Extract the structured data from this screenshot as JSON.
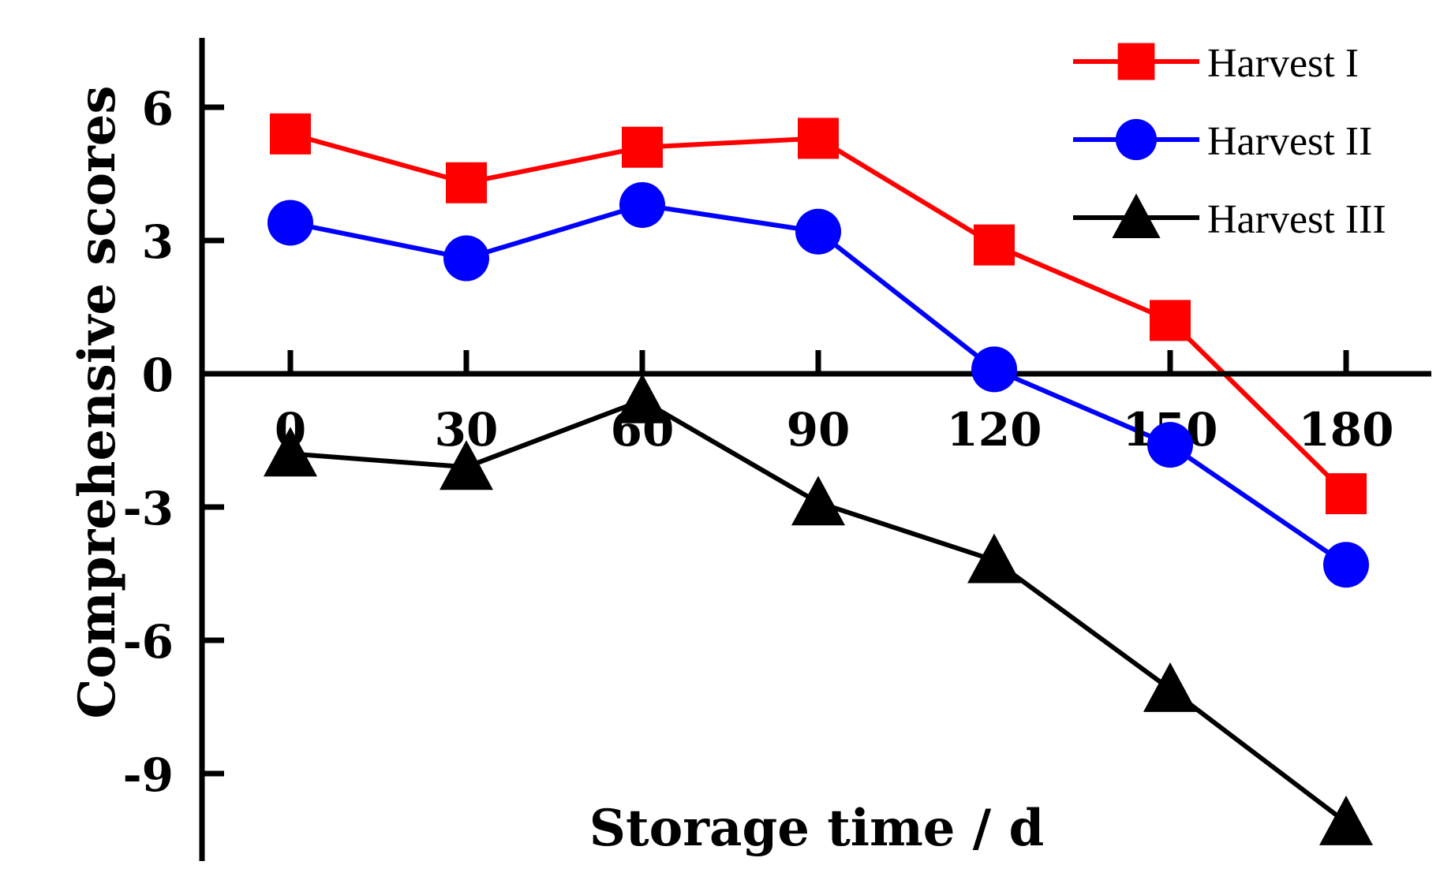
{
  "chart_data": {
    "type": "line",
    "title": "",
    "xlabel": "Storage time / d",
    "ylabel": "Comprehensive scores",
    "x": [
      0,
      30,
      60,
      90,
      120,
      150,
      180
    ],
    "x_tick_labels": [
      "0",
      "30",
      "60",
      "90",
      "120",
      "150",
      "180"
    ],
    "y_ticks": [
      6,
      3,
      0,
      -3,
      -6,
      -9
    ],
    "y_tick_labels": [
      "6",
      "3",
      "0",
      "-3",
      "-6",
      "-9"
    ],
    "xlim": [
      -15,
      195
    ],
    "ylim": [
      -11,
      7.5
    ],
    "grid": false,
    "legend_position": "top-right",
    "series": [
      {
        "name": "Harvest I",
        "marker": "square",
        "color": "#ff0000",
        "values": [
          5.4,
          4.3,
          5.1,
          5.3,
          2.9,
          1.2,
          -2.7
        ]
      },
      {
        "name": "Harvest II",
        "marker": "circle",
        "color": "#0000ff",
        "values": [
          3.4,
          2.6,
          3.8,
          3.2,
          0.1,
          -1.6,
          -4.3
        ]
      },
      {
        "name": "Harvest III",
        "marker": "triangle",
        "color": "#000000",
        "values": [
          -1.8,
          -2.1,
          -0.6,
          -2.9,
          -4.2,
          -7.1,
          -10.1
        ]
      }
    ]
  }
}
